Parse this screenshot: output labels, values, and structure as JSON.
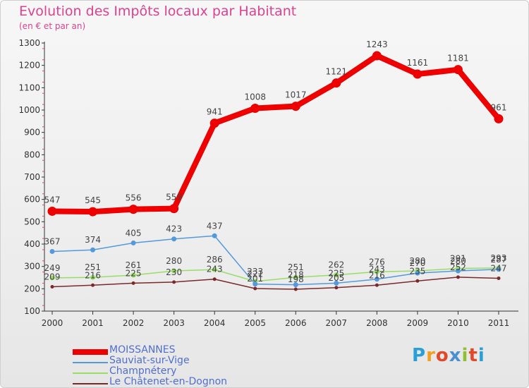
{
  "title": "Evolution des Impôts locaux par Habitant",
  "subtitle": "(en € et par an)",
  "logo": {
    "text": "Proxiti",
    "letters": [
      "P",
      "r",
      "o",
      "x",
      "i",
      "t",
      "i"
    ],
    "colors": [
      "#2a9fd6",
      "#f0a020",
      "#e04a2a",
      "#4a8fd0",
      "#8fc030",
      "#e04a2a",
      "#2a9fd6"
    ]
  },
  "chart_data": {
    "type": "line",
    "x": [
      "2000",
      "2001",
      "2002",
      "2003",
      "2004",
      "2005",
      "2006",
      "2007",
      "2008",
      "2009",
      "2010",
      "2011"
    ],
    "ylim": [
      100,
      1300
    ],
    "yticks": [
      100,
      200,
      300,
      400,
      500,
      600,
      700,
      800,
      900,
      1000,
      1100,
      1200,
      1300
    ],
    "grid": false,
    "legend_position": "bottom-left",
    "series": [
      {
        "name": "MOISSANNES",
        "color": "#ee0000",
        "width": 8,
        "marker": 6,
        "values": [
          547,
          545,
          556,
          559,
          941,
          1008,
          1017,
          1121,
          1243,
          1161,
          1181,
          961
        ]
      },
      {
        "name": "Sauviat-sur-Vige",
        "color": "#5599dd",
        "width": 1.5,
        "marker": 3,
        "values": [
          367,
          374,
          405,
          423,
          437,
          221,
          218,
          225,
          243,
          270,
          280,
          287
        ]
      },
      {
        "name": "Champnétery",
        "color": "#99dd66",
        "width": 1.5,
        "marker": 3,
        "values": [
          249,
          251,
          261,
          280,
          286,
          233,
          251,
          262,
          276,
          280,
          291,
          293
        ]
      },
      {
        "name": "Le Châtenet-en-Dognon",
        "color": "#7a2a2a",
        "width": 1.5,
        "marker": 2,
        "values": [
          209,
          216,
          225,
          230,
          243,
          201,
          198,
          205,
          216,
          235,
          252,
          247
        ]
      }
    ]
  }
}
